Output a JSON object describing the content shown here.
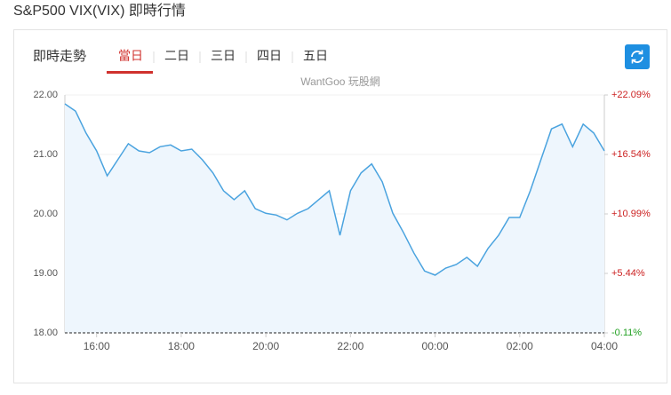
{
  "header": {
    "title": "S&P500 VIX(VIX) 即時行情"
  },
  "panel": {
    "heading": "即時走勢",
    "tabs": [
      "當日",
      "二日",
      "三日",
      "四日",
      "五日"
    ],
    "active_tab": 0,
    "watermark": "WantGoo 玩股網"
  },
  "chart_data": {
    "type": "line",
    "x": [
      "15:15",
      "15:30",
      "15:45",
      "16:00",
      "16:15",
      "16:30",
      "16:45",
      "17:00",
      "17:15",
      "17:30",
      "17:45",
      "18:00",
      "18:15",
      "18:30",
      "18:45",
      "19:00",
      "19:15",
      "19:30",
      "19:45",
      "20:00",
      "20:15",
      "20:30",
      "20:45",
      "21:00",
      "21:15",
      "21:30",
      "21:45",
      "22:00",
      "22:15",
      "22:30",
      "22:45",
      "23:00",
      "23:15",
      "23:30",
      "23:45",
      "00:00",
      "00:15",
      "00:30",
      "00:45",
      "01:00",
      "01:15",
      "01:30",
      "01:45",
      "02:00",
      "02:15",
      "02:30",
      "02:45",
      "03:00",
      "03:15",
      "03:30",
      "03:45",
      "04:00"
    ],
    "series": [
      {
        "name": "VIX",
        "color": "#4aa3df",
        "fill": "#eef6fd",
        "values": [
          21.85,
          21.73,
          21.36,
          21.06,
          20.64,
          20.91,
          21.18,
          21.06,
          21.03,
          21.13,
          21.16,
          21.06,
          21.09,
          20.91,
          20.69,
          20.39,
          20.24,
          20.39,
          20.09,
          20.01,
          19.98,
          19.9,
          20.01,
          20.09,
          20.24,
          20.39,
          19.64,
          20.39,
          20.69,
          20.84,
          20.54,
          20.01,
          19.69,
          19.34,
          19.04,
          18.97,
          19.09,
          19.15,
          19.27,
          19.12,
          19.42,
          19.64,
          19.94,
          19.94,
          20.39,
          20.91,
          21.43,
          21.51,
          21.13,
          21.51,
          21.36,
          21.06
        ]
      }
    ],
    "xticks": [
      "16:00",
      "18:00",
      "20:00",
      "22:00",
      "00:00",
      "02:00",
      "04:00"
    ],
    "ylim": [
      18,
      22
    ],
    "yticks": [
      {
        "value": 22,
        "label": "22.00"
      },
      {
        "value": 21,
        "label": "21.00"
      },
      {
        "value": 20,
        "label": "20.00"
      },
      {
        "value": 19,
        "label": "19.00"
      },
      {
        "value": 18,
        "label": "18.00"
      }
    ],
    "y2lim": [
      -0.11,
      22.09
    ],
    "y2ticks": [
      {
        "value": 22.09,
        "label": "+22.09%"
      },
      {
        "value": 16.54,
        "label": "+16.54%"
      },
      {
        "value": 10.99,
        "label": "+10.99%"
      },
      {
        "value": 5.44,
        "label": "+5.44%"
      },
      {
        "value": -0.11,
        "label": "-0.11%"
      }
    ],
    "y2_colors": {
      "up": "#cc2222",
      "down": "#22a022"
    },
    "grid": true
  }
}
